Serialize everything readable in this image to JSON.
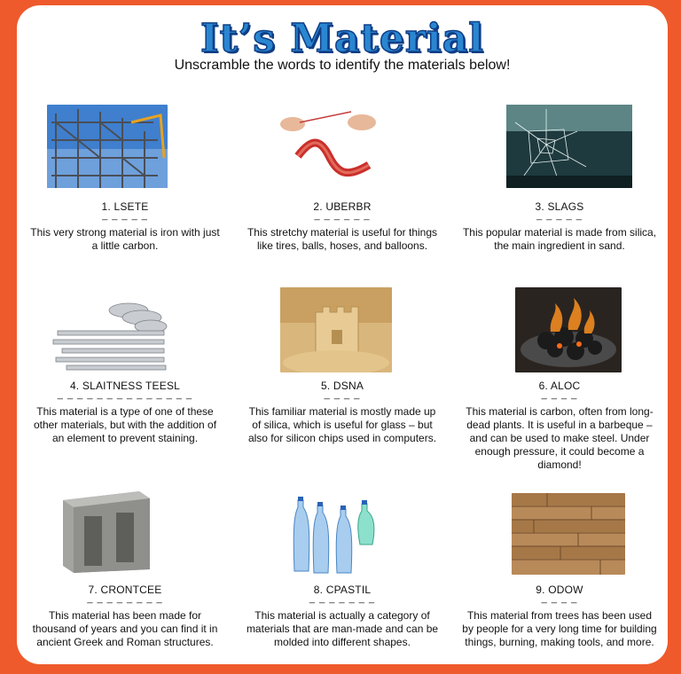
{
  "title": "It’s Material",
  "subtitle": "Unscramble the words to identify the materials below!",
  "items": [
    {
      "name": "1. LSETE",
      "blanks": "_ _ _ _ _",
      "description": "This very strong material is iron with just a little carbon.",
      "image": "steel-frame-photo"
    },
    {
      "name": "2. UBERBR",
      "blanks": "_ _ _ _ _ _",
      "description": "This stretchy material is useful for things like tires, balls, hoses, and balloons.",
      "image": "rubber-band-photo"
    },
    {
      "name": "3. SLAGS",
      "blanks": "_ _ _ _ _",
      "description": "This popular material is made from silica, the main ingredient in sand.",
      "image": "cracked-glass-photo"
    },
    {
      "name": "4. SLAITNESS  TEESL",
      "blanks": "_ _ _ _ _ _ _ _ _   _ _ _ _ _",
      "description": "This material is a type of one of these other materials, but with the addition of an element to prevent staining.",
      "image": "cutlery-photo"
    },
    {
      "name": "5. DSNA",
      "blanks": "_ _ _ _",
      "description": "This familiar material is mostly made up of silica, which is useful for glass – but also for silicon chips used in computers.",
      "image": "sandcastle-photo"
    },
    {
      "name": "6. ALOC",
      "blanks": "_ _ _ _",
      "description": "This material is carbon, often from long-dead plants. It is useful in a barbeque – and can be used to make steel.  Under enough pressure, it could become a diamond!",
      "image": "burning-coal-photo"
    },
    {
      "name": "7. CRONTCEE",
      "blanks": "_ _ _ _ _ _ _ _",
      "description": "This material has been made for thousand of years and you can find it in ancient Greek and Roman structures.",
      "image": "concrete-block-photo"
    },
    {
      "name": "8. CPASTIL",
      "blanks": "_ _ _ _ _ _ _",
      "description": "This material is actually a category of materials that are man-made and can be molded into different shapes.",
      "image": "plastic-bottles-photo"
    },
    {
      "name": "9. ODOW",
      "blanks": "_ _ _ _",
      "description": "This material from trees has been used by people for a very long time for building things, burning, making tools, and more.",
      "image": "wood-planks-photo"
    }
  ],
  "colors": {
    "frame": "#ee5a2b",
    "title": "#2a86d1",
    "title_outline": "#0f3e87"
  }
}
